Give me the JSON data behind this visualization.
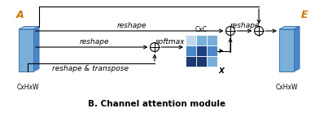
{
  "title": "B. Channel attention module",
  "A_label": "A",
  "E_label": "E",
  "dim_label": "CxHxW",
  "cxc_label": "CxC",
  "X_label": "X",
  "reshape_top": "reshape",
  "reshape_mid": "reshape",
  "reshape_bottom": "reshape & transpose",
  "softmax_label": "softmax",
  "reshape_right": "reshape",
  "bg_color": "#ffffff",
  "block_face_color": "#7ab0d8",
  "block_side_color": "#4a86c8",
  "block_top_color": "#9ec8e8",
  "block_edge_color": "#3a70b0",
  "matrix_colors": [
    [
      "#bed8ef",
      "#7ab0d8",
      "#7ab0d8"
    ],
    [
      "#4a86c8",
      "#1a4080",
      "#4a86c8"
    ],
    [
      "#1a3a70",
      "#1a3a70",
      "#7ab0d8"
    ]
  ],
  "arrow_color": "#000000",
  "text_color": "#000000",
  "label_color": "#cc7700",
  "font_size": 6.5,
  "title_font_size": 7.5
}
